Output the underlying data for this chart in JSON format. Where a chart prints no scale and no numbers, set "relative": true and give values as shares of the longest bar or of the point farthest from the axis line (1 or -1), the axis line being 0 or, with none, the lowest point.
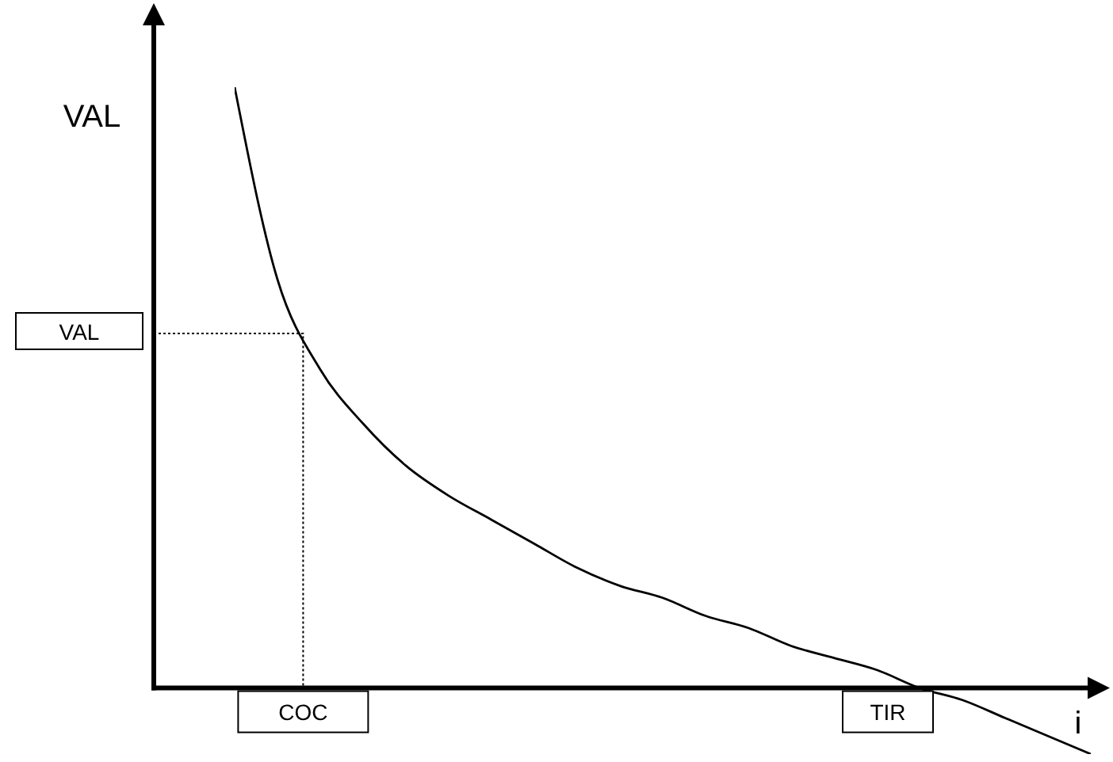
{
  "chart_data": {
    "type": "line",
    "relative": true,
    "ylabel": "VAL",
    "xlabel": "i",
    "color": "#000000",
    "categories": [
      null,
      null,
      null,
      null,
      null,
      null,
      null,
      null,
      null,
      null,
      null,
      null,
      null,
      null,
      null,
      null,
      null,
      null,
      null,
      null,
      null
    ],
    "values": [
      1.0,
      0.68,
      0.53,
      0.44,
      0.37,
      0.32,
      0.28,
      0.24,
      0.2,
      0.17,
      0.15,
      0.12,
      0.1,
      0.07,
      0.05,
      0.03,
      0.0,
      -0.02,
      -0.05,
      -0.08,
      -0.11
    ],
    "ref_lines": [
      {
        "axis": "y",
        "value": 0.59,
        "label": "VAL",
        "line_style": "dotted"
      }
    ],
    "annotations": [
      "COC",
      "TIR"
    ]
  }
}
